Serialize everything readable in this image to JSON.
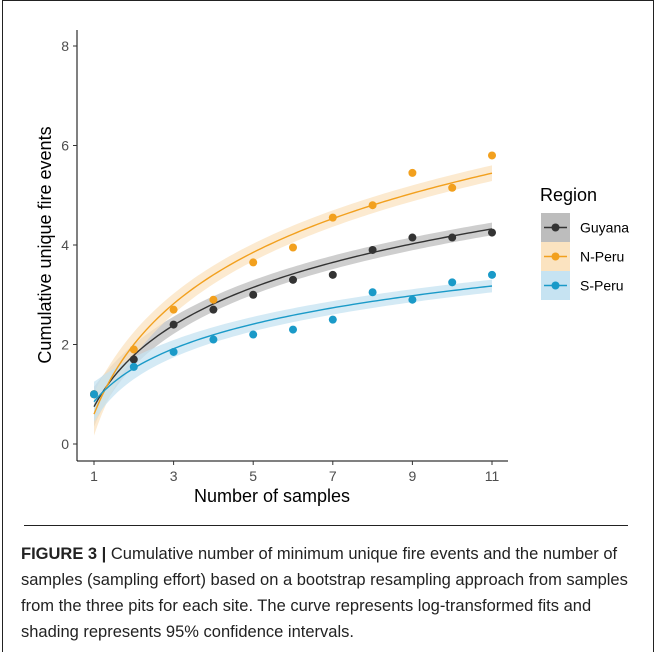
{
  "chart_data": {
    "type": "scatter",
    "xlabel": "Number of samples",
    "ylabel": "Cumulative unique fire events",
    "xlim": [
      1,
      11
    ],
    "ylim": [
      0,
      8
    ],
    "x_ticks": [
      1,
      3,
      5,
      7,
      9,
      11
    ],
    "y_ticks": [
      0,
      2,
      4,
      6,
      8
    ],
    "grid": false,
    "legend_title": "Region",
    "legend_position": "right",
    "x": [
      1,
      2,
      3,
      4,
      5,
      6,
      7,
      8,
      9,
      10,
      11
    ],
    "series": [
      {
        "name": "Guyana",
        "color": "#333333",
        "band_color": "#bdbdbd",
        "points": [
          1.0,
          1.7,
          2.4,
          2.7,
          3.0,
          3.3,
          3.4,
          3.9,
          4.15,
          4.15,
          4.25
        ],
        "fit": {
          "a": 0.75,
          "b": 1.49,
          "ci_half_width": 0.12
        }
      },
      {
        "name": "N-Peru",
        "color": "#f2a01e",
        "band_color": "#fbe3c0",
        "points": [
          1.0,
          1.9,
          2.7,
          2.9,
          3.65,
          3.95,
          4.55,
          4.8,
          5.45,
          5.15,
          5.8
        ],
        "fit": {
          "a": 0.6,
          "b": 2.02,
          "ci_half_width": 0.15
        }
      },
      {
        "name": "S-Peru",
        "color": "#1a9ac8",
        "band_color": "#c6e3f2",
        "points": [
          1.0,
          1.55,
          1.85,
          2.1,
          2.2,
          2.3,
          2.5,
          3.05,
          2.9,
          3.25,
          3.4
        ],
        "fit": {
          "a": 0.85,
          "b": 0.97,
          "ci_half_width": 0.12
        }
      }
    ]
  },
  "caption": {
    "label": "FIGURE 3 |",
    "text": " Cumulative number of minimum unique fire events and the number of samples (sampling effort) based on a bootstrap resampling approach from samples from the three pits for each site. The curve represents log-transformed fits and shading represents 95% confidence intervals."
  }
}
